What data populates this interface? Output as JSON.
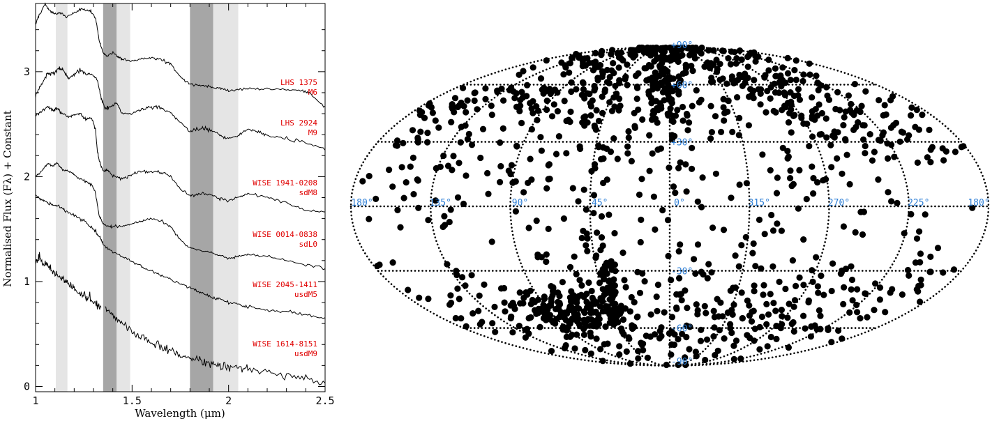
{
  "chart_data": [
    {
      "type": "line",
      "xlabel": "Wavelength (μm)",
      "ylabel": "Normalised Flux (Fλ) + Constant",
      "xlim": [
        1.0,
        2.5
      ],
      "ylim": [
        -0.05,
        3.65
      ],
      "x_ticks": [
        "1",
        "1.5",
        "2",
        "2.5"
      ],
      "y_ticks": [
        "0",
        "1",
        "2",
        "3"
      ],
      "grid": false,
      "shaded_bands": [
        {
          "x0": 1.105,
          "x1": 1.165,
          "shade": "light",
          "color": "#e5e5e5"
        },
        {
          "x0": 1.35,
          "x1": 1.42,
          "shade": "dark",
          "color": "#a6a6a6"
        },
        {
          "x0": 1.42,
          "x1": 1.49,
          "shade": "light",
          "color": "#e5e5e5"
        },
        {
          "x0": 1.8,
          "x1": 1.92,
          "shade": "dark",
          "color": "#a6a6a6"
        },
        {
          "x0": 1.92,
          "x1": 2.05,
          "shade": "light",
          "color": "#e5e5e5"
        }
      ],
      "series": [
        {
          "name": "LHS 1375",
          "type_label": "M6",
          "noise": 0.006,
          "points": [
            [
              1.0,
              3.45
            ],
            [
              1.02,
              3.55
            ],
            [
              1.05,
              3.64
            ],
            [
              1.08,
              3.57
            ],
            [
              1.1,
              3.55
            ],
            [
              1.13,
              3.56
            ],
            [
              1.16,
              3.52
            ],
            [
              1.2,
              3.56
            ],
            [
              1.24,
              3.6
            ],
            [
              1.28,
              3.58
            ],
            [
              1.31,
              3.52
            ],
            [
              1.33,
              3.3
            ],
            [
              1.35,
              3.18
            ],
            [
              1.37,
              3.15
            ],
            [
              1.4,
              3.18
            ],
            [
              1.43,
              3.14
            ],
            [
              1.45,
              3.12
            ],
            [
              1.5,
              3.1
            ],
            [
              1.55,
              3.12
            ],
            [
              1.6,
              3.13
            ],
            [
              1.65,
              3.12
            ],
            [
              1.7,
              3.07
            ],
            [
              1.75,
              2.95
            ],
            [
              1.8,
              2.88
            ],
            [
              1.85,
              2.87
            ],
            [
              1.9,
              2.86
            ],
            [
              1.95,
              2.84
            ],
            [
              2.0,
              2.82
            ],
            [
              2.05,
              2.83
            ],
            [
              2.1,
              2.84
            ],
            [
              2.2,
              2.84
            ],
            [
              2.3,
              2.83
            ],
            [
              2.38,
              2.82
            ],
            [
              2.42,
              2.8
            ],
            [
              2.5,
              2.66
            ]
          ]
        },
        {
          "name": "LHS 2924",
          "type_label": "M9",
          "noise": 0.008,
          "points": [
            [
              1.0,
              2.76
            ],
            [
              1.03,
              2.88
            ],
            [
              1.06,
              2.98
            ],
            [
              1.09,
              2.98
            ],
            [
              1.12,
              3.03
            ],
            [
              1.14,
              3.02
            ],
            [
              1.17,
              2.93
            ],
            [
              1.2,
              2.97
            ],
            [
              1.23,
              3.02
            ],
            [
              1.26,
              2.98
            ],
            [
              1.29,
              2.98
            ],
            [
              1.32,
              2.92
            ],
            [
              1.34,
              2.75
            ],
            [
              1.36,
              2.65
            ],
            [
              1.38,
              2.66
            ],
            [
              1.42,
              2.7
            ],
            [
              1.45,
              2.6
            ],
            [
              1.5,
              2.6
            ],
            [
              1.55,
              2.64
            ],
            [
              1.6,
              2.66
            ],
            [
              1.65,
              2.66
            ],
            [
              1.7,
              2.6
            ],
            [
              1.75,
              2.52
            ],
            [
              1.8,
              2.43
            ],
            [
              1.85,
              2.46
            ],
            [
              1.9,
              2.45
            ],
            [
              1.95,
              2.4
            ],
            [
              2.0,
              2.36
            ],
            [
              2.05,
              2.39
            ],
            [
              2.1,
              2.45
            ],
            [
              2.15,
              2.43
            ],
            [
              2.2,
              2.4
            ],
            [
              2.3,
              2.36
            ],
            [
              2.4,
              2.33
            ],
            [
              2.5,
              2.26
            ]
          ]
        },
        {
          "name": "WISE 1941-0208",
          "type_label": "sdM8",
          "noise": 0.007,
          "points": [
            [
              1.0,
              2.58
            ],
            [
              1.03,
              2.62
            ],
            [
              1.06,
              2.67
            ],
            [
              1.09,
              2.63
            ],
            [
              1.11,
              2.65
            ],
            [
              1.14,
              2.6
            ],
            [
              1.17,
              2.57
            ],
            [
              1.2,
              2.59
            ],
            [
              1.23,
              2.6
            ],
            [
              1.26,
              2.55
            ],
            [
              1.29,
              2.56
            ],
            [
              1.31,
              2.45
            ],
            [
              1.32,
              2.25
            ],
            [
              1.33,
              2.15
            ],
            [
              1.35,
              2.05
            ],
            [
              1.37,
              2.07
            ],
            [
              1.4,
              2.0
            ],
            [
              1.45,
              1.98
            ],
            [
              1.5,
              2.02
            ],
            [
              1.55,
              2.05
            ],
            [
              1.6,
              2.05
            ],
            [
              1.65,
              2.04
            ],
            [
              1.7,
              2.0
            ],
            [
              1.75,
              1.88
            ],
            [
              1.8,
              1.82
            ],
            [
              1.85,
              1.84
            ],
            [
              1.9,
              1.83
            ],
            [
              1.95,
              1.8
            ],
            [
              2.0,
              1.77
            ],
            [
              2.05,
              1.8
            ],
            [
              2.1,
              1.84
            ],
            [
              2.2,
              1.8
            ],
            [
              2.3,
              1.75
            ],
            [
              2.4,
              1.68
            ],
            [
              2.5,
              1.66
            ]
          ]
        },
        {
          "name": "WISE 0014-0838",
          "type_label": "sdL0",
          "noise": 0.006,
          "points": [
            [
              1.0,
              2.0
            ],
            [
              1.03,
              2.05
            ],
            [
              1.06,
              2.12
            ],
            [
              1.09,
              2.1
            ],
            [
              1.11,
              2.13
            ],
            [
              1.14,
              2.07
            ],
            [
              1.17,
              2.05
            ],
            [
              1.2,
              2.02
            ],
            [
              1.23,
              1.98
            ],
            [
              1.26,
              1.95
            ],
            [
              1.29,
              1.93
            ],
            [
              1.31,
              1.85
            ],
            [
              1.33,
              1.62
            ],
            [
              1.35,
              1.55
            ],
            [
              1.37,
              1.53
            ],
            [
              1.4,
              1.52
            ],
            [
              1.45,
              1.53
            ],
            [
              1.5,
              1.55
            ],
            [
              1.55,
              1.58
            ],
            [
              1.6,
              1.6
            ],
            [
              1.65,
              1.58
            ],
            [
              1.7,
              1.52
            ],
            [
              1.75,
              1.4
            ],
            [
              1.8,
              1.32
            ],
            [
              1.85,
              1.3
            ],
            [
              1.9,
              1.28
            ],
            [
              1.95,
              1.25
            ],
            [
              2.0,
              1.22
            ],
            [
              2.05,
              1.24
            ],
            [
              2.1,
              1.26
            ],
            [
              2.2,
              1.24
            ],
            [
              2.3,
              1.2
            ],
            [
              2.4,
              1.16
            ],
            [
              2.5,
              1.13
            ]
          ]
        },
        {
          "name": "WISE 2045-1411",
          "type_label": "usdM5",
          "noise": 0.007,
          "points": [
            [
              1.0,
              1.82
            ],
            [
              1.03,
              1.78
            ],
            [
              1.06,
              1.75
            ],
            [
              1.09,
              1.73
            ],
            [
              1.12,
              1.72
            ],
            [
              1.15,
              1.68
            ],
            [
              1.2,
              1.63
            ],
            [
              1.25,
              1.58
            ],
            [
              1.3,
              1.5
            ],
            [
              1.32,
              1.45
            ],
            [
              1.34,
              1.4
            ],
            [
              1.35,
              1.35
            ],
            [
              1.4,
              1.28
            ],
            [
              1.45,
              1.24
            ],
            [
              1.5,
              1.19
            ],
            [
              1.55,
              1.14
            ],
            [
              1.6,
              1.1
            ],
            [
              1.65,
              1.06
            ],
            [
              1.7,
              1.02
            ],
            [
              1.75,
              0.98
            ],
            [
              1.8,
              0.94
            ],
            [
              1.85,
              0.9
            ],
            [
              1.9,
              0.86
            ],
            [
              1.95,
              0.83
            ],
            [
              2.0,
              0.8
            ],
            [
              2.05,
              0.78
            ],
            [
              2.1,
              0.76
            ],
            [
              2.2,
              0.73
            ],
            [
              2.3,
              0.71
            ],
            [
              2.4,
              0.68
            ],
            [
              2.5,
              0.65
            ]
          ]
        },
        {
          "name": "WISE 1614-8151",
          "type_label": "usdM9",
          "noise": 0.02,
          "points": [
            [
              1.0,
              1.18
            ],
            [
              1.02,
              1.22
            ],
            [
              1.05,
              1.16
            ],
            [
              1.08,
              1.12
            ],
            [
              1.11,
              1.06
            ],
            [
              1.14,
              1.02
            ],
            [
              1.17,
              0.98
            ],
            [
              1.2,
              0.93
            ],
            [
              1.23,
              0.89
            ],
            [
              1.26,
              0.85
            ],
            [
              1.29,
              0.81
            ],
            [
              1.32,
              0.78
            ],
            [
              1.34,
              0.74
            ],
            null,
            [
              1.36,
              0.75
            ],
            [
              1.4,
              0.68
            ],
            [
              1.45,
              0.6
            ],
            [
              1.5,
              0.53
            ],
            [
              1.55,
              0.47
            ],
            [
              1.6,
              0.42
            ],
            [
              1.65,
              0.38
            ],
            [
              1.7,
              0.34
            ],
            [
              1.75,
              0.3
            ],
            [
              1.8,
              0.26
            ],
            [
              1.85,
              0.24
            ],
            [
              1.9,
              0.22
            ],
            [
              1.95,
              0.2
            ],
            [
              2.0,
              0.18
            ],
            [
              2.05,
              0.17
            ],
            [
              2.1,
              0.16
            ],
            [
              2.2,
              0.14
            ],
            [
              2.3,
              0.11
            ],
            [
              2.4,
              0.08
            ],
            [
              2.5,
              0.03
            ]
          ]
        }
      ]
    },
    {
      "type": "scatter",
      "projection": "mollweide",
      "grid_color": "#2e7fd6",
      "longitude_labels": [
        "180°",
        "135°",
        "90°",
        "45°",
        "0°",
        "315°",
        "270°",
        "225°",
        "180°"
      ],
      "longitude_values": [
        180,
        135,
        90,
        45,
        0,
        315,
        270,
        225,
        180
      ],
      "latitude_labels": [
        "+90°",
        "+60°",
        "+30°",
        "-30°",
        "-60°",
        "-90°"
      ],
      "latitude_values": [
        90,
        60,
        30,
        -30,
        -60,
        -90
      ],
      "clusters": [
        {
          "lon": 10,
          "lat": 82,
          "sigma_lon": 140,
          "sigma_lat": 7,
          "count": 130
        },
        {
          "lon": 5,
          "lat": 60,
          "sigma_lon": 10,
          "sigma_lat": 14,
          "count": 80
        },
        {
          "lon": 60,
          "lat": 55,
          "sigma_lon": 50,
          "sigma_lat": 12,
          "count": 140
        },
        {
          "lon": -80,
          "lat": 55,
          "sigma_lon": 35,
          "sigma_lat": 10,
          "count": 110
        },
        {
          "lon": -120,
          "lat": 40,
          "sigma_lon": 25,
          "sigma_lat": 12,
          "count": 70
        },
        {
          "lon": 160,
          "lat": 35,
          "sigma_lon": 20,
          "sigma_lat": 15,
          "count": 45
        },
        {
          "lon": 100,
          "lat": 30,
          "sigma_lon": 50,
          "sigma_lat": 15,
          "count": 60
        },
        {
          "lon": -30,
          "lat": 25,
          "sigma_lon": 60,
          "sigma_lat": 15,
          "count": 50
        },
        {
          "lon": 0,
          "lat": 0,
          "sigma_lon": 120,
          "sigma_lat": 20,
          "count": 150
        },
        {
          "lon": 75,
          "lat": -50,
          "sigma_lon": 20,
          "sigma_lat": 6,
          "count": 130
        },
        {
          "lon": 42,
          "lat": -40,
          "sigma_lon": 4,
          "sigma_lat": 14,
          "count": 70
        },
        {
          "lon": 0,
          "lat": -55,
          "sigma_lon": 110,
          "sigma_lat": 15,
          "count": 230
        },
        {
          "lon": -100,
          "lat": -40,
          "sigma_lon": 60,
          "sigma_lat": 15,
          "count": 90
        }
      ]
    }
  ]
}
